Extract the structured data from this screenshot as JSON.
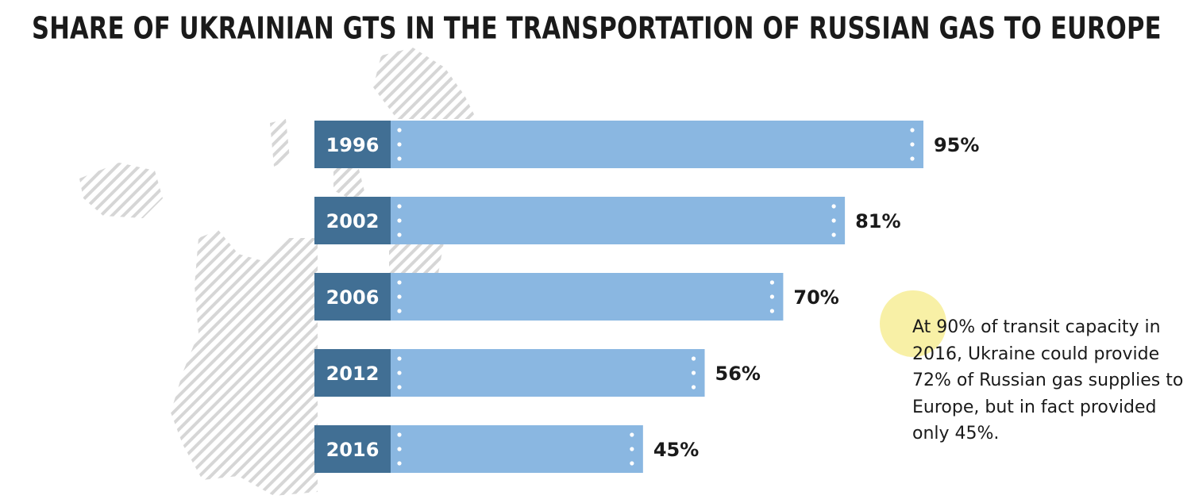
{
  "chart_data": {
    "type": "bar",
    "orientation": "horizontal",
    "title": "SHARE OF UKRAINIAN GTS IN THE TRANSPORTATION OF RUSSIAN GAS TO EUROPE",
    "categories": [
      "1996",
      "2002",
      "2006",
      "2012",
      "2016"
    ],
    "values": [
      95,
      81,
      70,
      56,
      45
    ],
    "value_labels": [
      "95%",
      "81%",
      "70%",
      "56%",
      "45%"
    ],
    "unit": "%",
    "grid": false,
    "legend": "none"
  },
  "annotation": {
    "text": "At 90% of transit capacity in 2016, Ukraine could provide 72% of Russian gas supplies to Europe, but in fact provided only 45%."
  },
  "colors": {
    "bar_fill": "#8ab7e1",
    "year_label_fill": "#416f94",
    "annotation_circle": "#f8f0a6",
    "map_hatch": "#d4d4d4",
    "text": "#1a1a1a"
  }
}
